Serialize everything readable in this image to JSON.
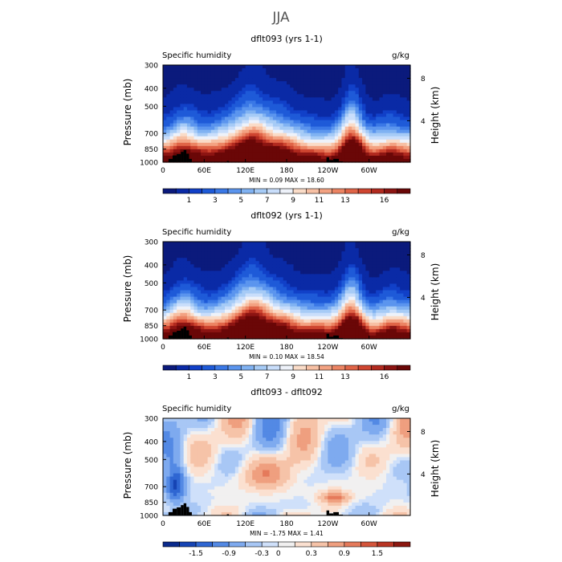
{
  "figure": {
    "title": "JJA"
  },
  "colors": {
    "abs_levels": [
      "#0b1a7c",
      "#0a2aa6",
      "#1140c8",
      "#1e5ad8",
      "#3a78e6",
      "#5b95ee",
      "#80b2f2",
      "#a6cbf6",
      "#c9defb",
      "#eef2fa",
      "#fadcc8",
      "#f7c0a4",
      "#f3a282",
      "#ec8463",
      "#e06447",
      "#cf4530",
      "#b22a1f",
      "#8c1412",
      "#6a0707"
    ],
    "diff_levels": [
      "#0a2a8c",
      "#1644b4",
      "#2f66d2",
      "#5389e4",
      "#7eaaef",
      "#a8c7f5",
      "#cfe0fa",
      "#f1f0f0",
      "#fbe0d0",
      "#f6c3a8",
      "#ef9f7f",
      "#e57a5b",
      "#d4553b",
      "#b93524",
      "#8c1710"
    ],
    "topography": "#000000"
  },
  "chart_data": [
    {
      "type": "heatmap",
      "title": "dflt093 (yrs 1-1)",
      "left_label": "Specific humidity",
      "right_label": "g/kg",
      "xlabel": "",
      "ylabel": "Pressure (mb)",
      "ylabel_right": "Height (km)",
      "x_ticks": [
        "0",
        "60E",
        "120E",
        "180",
        "120W",
        "60W"
      ],
      "x_tick_positions_deg": [
        0,
        60,
        120,
        180,
        240,
        300
      ],
      "y_ticks": [
        "300",
        "400",
        "500",
        "700",
        "850",
        "1000"
      ],
      "y_tick_values_mb": [
        300,
        400,
        500,
        700,
        850,
        1000
      ],
      "height_ticks": [
        "8",
        "4"
      ],
      "height_tick_values_km": [
        8,
        4
      ],
      "x_range_deg": [
        0,
        360
      ],
      "y_range_mb": [
        1000,
        300
      ],
      "min_max_text": "MIN =    0.09   MAX =   18.60",
      "min": 0.09,
      "max": 18.6,
      "colorbar_labels": [
        "1",
        "3",
        "5",
        "7",
        "9",
        "11",
        "13",
        "16"
      ],
      "colorbar_bins": 19,
      "colorbar_label_edges": [
        2,
        4,
        6,
        8,
        10,
        12,
        14,
        17
      ],
      "palette": "abs"
    },
    {
      "type": "heatmap",
      "title": "dflt092 (yrs 1-1)",
      "left_label": "Specific humidity",
      "right_label": "g/kg",
      "xlabel": "",
      "ylabel": "Pressure (mb)",
      "ylabel_right": "Height (km)",
      "x_ticks": [
        "0",
        "60E",
        "120E",
        "180",
        "120W",
        "60W"
      ],
      "x_tick_positions_deg": [
        0,
        60,
        120,
        180,
        240,
        300
      ],
      "y_ticks": [
        "300",
        "400",
        "500",
        "700",
        "850",
        "1000"
      ],
      "y_tick_values_mb": [
        300,
        400,
        500,
        700,
        850,
        1000
      ],
      "height_ticks": [
        "8",
        "4"
      ],
      "height_tick_values_km": [
        8,
        4
      ],
      "x_range_deg": [
        0,
        360
      ],
      "y_range_mb": [
        1000,
        300
      ],
      "min_max_text": "MIN =    0.10   MAX =   18.54",
      "min": 0.1,
      "max": 18.54,
      "colorbar_labels": [
        "1",
        "3",
        "5",
        "7",
        "9",
        "11",
        "13",
        "16"
      ],
      "colorbar_bins": 19,
      "colorbar_label_edges": [
        2,
        4,
        6,
        8,
        10,
        12,
        14,
        17
      ],
      "palette": "abs"
    },
    {
      "type": "heatmap",
      "title": "dflt093 - dflt092",
      "left_label": "Specific humidity",
      "right_label": "g/kg",
      "xlabel": "",
      "ylabel": "Pressure (mb)",
      "ylabel_right": "Height (km)",
      "x_ticks": [
        "0",
        "60E",
        "120E",
        "180",
        "120W",
        "60W"
      ],
      "x_tick_positions_deg": [
        0,
        60,
        120,
        180,
        240,
        300
      ],
      "y_ticks": [
        "300",
        "400",
        "500",
        "700",
        "850",
        "1000"
      ],
      "y_tick_values_mb": [
        300,
        400,
        500,
        700,
        850,
        1000
      ],
      "height_ticks": [
        "8",
        "4"
      ],
      "height_tick_values_km": [
        8,
        4
      ],
      "x_range_deg": [
        0,
        360
      ],
      "y_range_mb": [
        1000,
        300
      ],
      "min_max_text": "MIN =   -1.75   MAX =    1.41",
      "min": -1.75,
      "max": 1.41,
      "colorbar_labels": [
        "-1.5",
        "-0.9",
        "-0.3",
        "0",
        "0.3",
        "0.9",
        "1.5"
      ],
      "colorbar_bins": 15,
      "colorbar_label_edges": [
        2,
        4,
        6,
        7,
        9,
        11,
        13
      ],
      "palette": "diff"
    }
  ]
}
